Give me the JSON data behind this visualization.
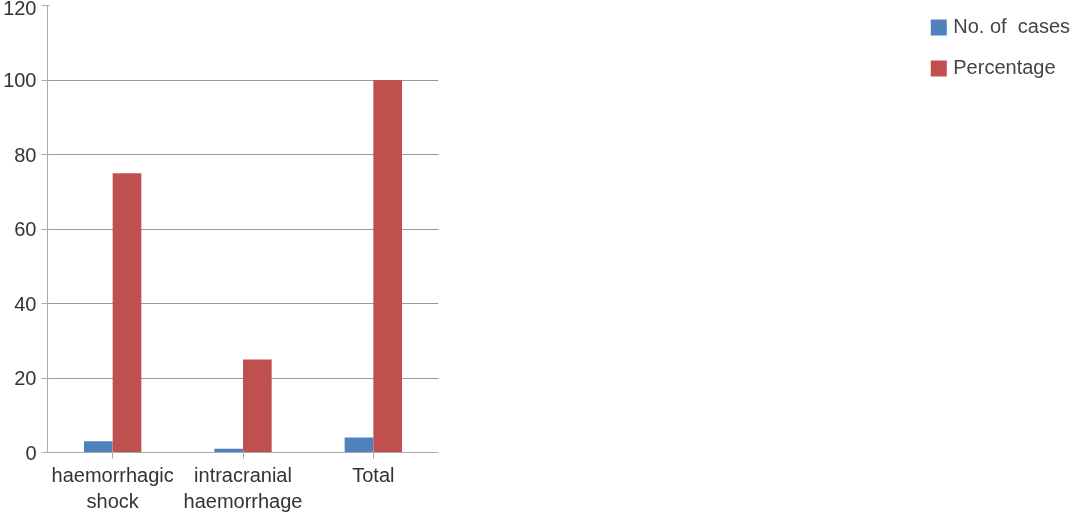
{
  "chart_data": {
    "type": "bar",
    "categories": [
      "haemorrhagic\nshock",
      "intracranial\nhaemorrhage",
      "Total"
    ],
    "series": [
      {
        "name": "No. of  cases",
        "color": "#4f81bd",
        "values": [
          3,
          1,
          4
        ]
      },
      {
        "name": "Percentage",
        "color": "#c0504d",
        "values": [
          75,
          25,
          100
        ]
      }
    ],
    "ylim": [
      0,
      120
    ],
    "yticks": [
      0,
      20,
      40,
      60,
      80,
      100,
      120
    ],
    "grid": "y",
    "legend": "right"
  }
}
